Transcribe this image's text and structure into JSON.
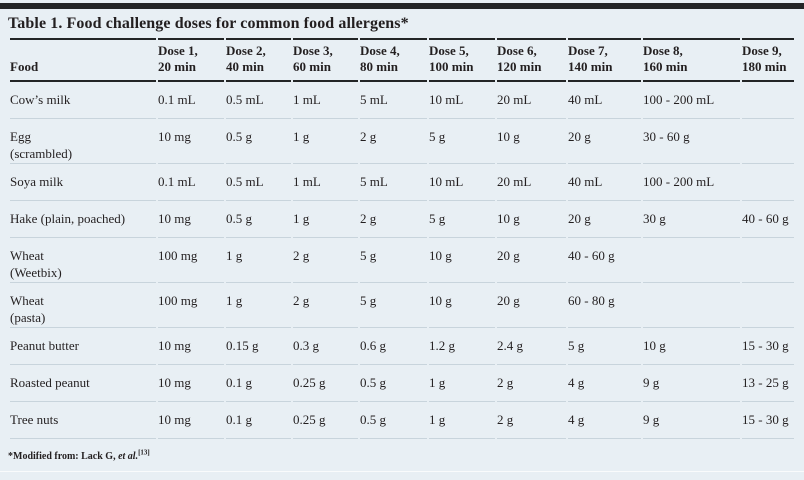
{
  "table": {
    "title": "Table 1. Food challenge doses for common food allergens*",
    "columns": [
      {
        "lines": [
          "Food"
        ]
      },
      {
        "lines": [
          "Dose 1,",
          "20 min"
        ]
      },
      {
        "lines": [
          "Dose 2,",
          "40 min"
        ]
      },
      {
        "lines": [
          "Dose 3,",
          "60 min"
        ]
      },
      {
        "lines": [
          "Dose 4,",
          "80 min"
        ]
      },
      {
        "lines": [
          "Dose 5,",
          "100 min"
        ]
      },
      {
        "lines": [
          "Dose 6,",
          "120 min"
        ]
      },
      {
        "lines": [
          "Dose 7,",
          "140 min"
        ]
      },
      {
        "lines": [
          "Dose 8,",
          "160 min"
        ]
      },
      {
        "lines": [
          "Dose 9,",
          "180 min"
        ]
      }
    ],
    "rows": [
      {
        "food": [
          "Cow’s milk"
        ],
        "doses": [
          "0.1 mL",
          "0.5 mL",
          "1 mL",
          "5 mL",
          "10 mL",
          "20 mL",
          "40 mL",
          "100 - 200 mL",
          ""
        ]
      },
      {
        "food": [
          "Egg",
          "(scrambled)"
        ],
        "doses": [
          "10 mg",
          "0.5 g",
          "1 g",
          "2 g",
          "5 g",
          "10 g",
          "20 g",
          "30 - 60 g",
          ""
        ]
      },
      {
        "food": [
          "Soya milk"
        ],
        "doses": [
          "0.1 mL",
          "0.5 mL",
          "1 mL",
          "5 mL",
          "10 mL",
          "20 mL",
          "40 mL",
          "100 - 200 mL",
          ""
        ]
      },
      {
        "food": [
          "Hake (plain, poached)"
        ],
        "doses": [
          "10 mg",
          "0.5 g",
          "1 g",
          "2 g",
          "5 g",
          "10 g",
          "20 g",
          "30 g",
          "40 - 60 g"
        ]
      },
      {
        "food": [
          "Wheat",
          "(Weetbix)"
        ],
        "doses": [
          "100 mg",
          "1 g",
          "2 g",
          "5 g",
          "10 g",
          "20 g",
          "40 - 60 g",
          "",
          ""
        ]
      },
      {
        "food": [
          "Wheat",
          "(pasta)"
        ],
        "doses": [
          "100 mg",
          "1 g",
          "2 g",
          "5 g",
          "10 g",
          "20 g",
          "60 - 80 g",
          "",
          ""
        ]
      },
      {
        "food": [
          "Peanut butter"
        ],
        "doses": [
          "10 mg",
          "0.15 g",
          "0.3 g",
          "0.6 g",
          "1.2 g",
          "2.4 g",
          "5 g",
          "10 g",
          "15 - 30 g"
        ]
      },
      {
        "food": [
          "Roasted peanut"
        ],
        "doses": [
          "10 mg",
          "0.1 g",
          "0.25 g",
          "0.5 g",
          "1 g",
          "2 g",
          "4 g",
          "9 g",
          "13 - 25 g"
        ]
      },
      {
        "food": [
          "Tree nuts"
        ],
        "doses": [
          "10 mg",
          "0.1 g",
          "0.25 g",
          "0.5 g",
          "1 g",
          "2 g",
          "4 g",
          "9 g",
          "15 - 30 g"
        ]
      }
    ],
    "footnote": {
      "text": "*Modified from: Lack G, ",
      "etal": "et al.",
      "ref": "[13]"
    }
  },
  "colors": {
    "background": "#e8eff4",
    "rule_dark": "#232526",
    "row_line": "#c8d4dc",
    "text": "#231f20"
  }
}
